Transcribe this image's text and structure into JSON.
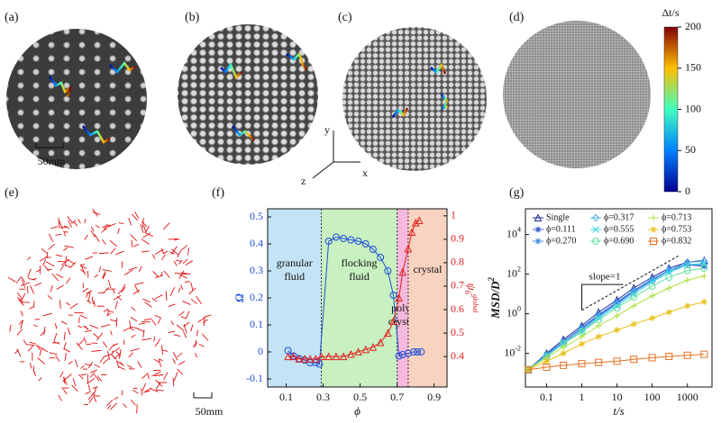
{
  "panel_labels": [
    "(a)",
    "(b)",
    "(c)",
    "(d)",
    "(e)",
    "(f)",
    "(g)"
  ],
  "scale_bars": [
    "50mm",
    "50mm"
  ],
  "axes_triad": {
    "x": "x",
    "y": "y",
    "z": "z"
  },
  "colorbar": {
    "title": "Δt/s",
    "lim": [
      0,
      200
    ],
    "ticks": [
      0,
      50,
      100,
      150,
      200
    ]
  },
  "chart_data": [
    {
      "type": "line",
      "xlabel": "ϕ",
      "ylabel": "Ω",
      "y2label": {
        "base": "ψ",
        "sub": "6",
        "sup": "global"
      },
      "xlim": [
        0,
        0.97
      ],
      "xticks": [
        0.1,
        0.3,
        0.5,
        0.7,
        0.9
      ],
      "ylim": [
        -0.13,
        0.53
      ],
      "yticks": [
        -0.1,
        0,
        0.1,
        0.2,
        0.3,
        0.4,
        0.5
      ],
      "y2lim": [
        0.27,
        1.03
      ],
      "y2ticks": [
        0.4,
        0.5,
        0.6,
        0.7,
        0.8,
        0.9,
        1
      ],
      "regions": [
        {
          "lines": [
            "granular",
            "fluid"
          ],
          "range": [
            0,
            0.29
          ],
          "color": "#c3e4f7"
        },
        {
          "lines": [
            "flocking",
            "fluid"
          ],
          "range": [
            0.29,
            0.7
          ],
          "color": "#c8f0c0"
        },
        {
          "lines": [
            "poly-",
            "crystal"
          ],
          "range": [
            0.7,
            0.76
          ],
          "color": "#f4b9dc"
        },
        {
          "lines": [
            "crystal"
          ],
          "range": [
            0.76,
            0.97
          ],
          "color": "#f8d3c0"
        }
      ],
      "series": [
        {
          "color": "#1f4fd8",
          "marker": "circle",
          "x": [
            0.11,
            0.14,
            0.17,
            0.2,
            0.23,
            0.26,
            0.28,
            0.33,
            0.37,
            0.41,
            0.45,
            0.49,
            0.53,
            0.57,
            0.61,
            0.65,
            0.68,
            0.71,
            0.73,
            0.76,
            0.79,
            0.81,
            0.83
          ],
          "values": [
            0.005,
            -0.015,
            -0.025,
            -0.03,
            -0.04,
            -0.04,
            -0.045,
            0.41,
            0.425,
            0.42,
            0.415,
            0.41,
            0.4,
            0.38,
            0.35,
            0.3,
            0.21,
            -0.015,
            -0.01,
            -0.005,
            0,
            0,
            0
          ]
        },
        {
          "color": "#e02020",
          "marker": "triangle",
          "axis": "y2",
          "x": [
            0.11,
            0.14,
            0.17,
            0.2,
            0.23,
            0.26,
            0.29,
            0.33,
            0.37,
            0.41,
            0.45,
            0.49,
            0.53,
            0.57,
            0.61,
            0.65,
            0.68,
            0.71,
            0.73,
            0.76,
            0.78,
            0.8,
            0.82
          ],
          "values": [
            0.4,
            0.4,
            0.39,
            0.39,
            0.39,
            0.39,
            0.4,
            0.4,
            0.4,
            0.4,
            0.41,
            0.42,
            0.43,
            0.44,
            0.46,
            0.5,
            0.55,
            0.65,
            0.76,
            0.86,
            0.93,
            0.97,
            0.98
          ]
        }
      ]
    },
    {
      "type": "line",
      "xscale": "log",
      "yscale": "log",
      "xlabel": "t/s",
      "ylabel": {
        "base": "MSD/D",
        "sup": "2"
      },
      "xlim": [
        0.025,
        5000
      ],
      "xticks": [
        0.1,
        1,
        10,
        100,
        1000
      ],
      "ylim": [
        0.0002,
        200000
      ],
      "yticks": [
        {
          "value": 0.01,
          "label": "10",
          "exponent": "-2"
        },
        {
          "value": 1,
          "label": "10",
          "exponent": "0"
        },
        {
          "value": 100,
          "label": "10",
          "exponent": "2"
        },
        {
          "value": 10000,
          "label": "10",
          "exponent": "4"
        }
      ],
      "legend": "top",
      "annotation": "slope=1",
      "x": [
        0.03,
        0.1,
        0.3,
        1,
        3,
        10,
        30,
        100,
        300,
        1000,
        3000
      ],
      "series": [
        {
          "name": "Single",
          "color": "#1a2a9a",
          "marker": "triangle",
          "values": [
            0.0015,
            0.01,
            0.05,
            0.25,
            1.2,
            5,
            20,
            70,
            200,
            400,
            500
          ]
        },
        {
          "name": "ϕ=0.111",
          "color": "#3050d0",
          "marker": "star",
          "values": [
            0.0015,
            0.008,
            0.04,
            0.18,
            0.8,
            3.5,
            14,
            50,
            150,
            300,
            250
          ]
        },
        {
          "name": "ϕ=0.270",
          "color": "#3a8ae0",
          "marker": "star",
          "values": [
            0.0015,
            0.009,
            0.04,
            0.2,
            0.9,
            4,
            15,
            55,
            160,
            300,
            300
          ]
        },
        {
          "name": "ϕ=0.317",
          "color": "#50b0f0",
          "marker": "diamond",
          "values": [
            0.0015,
            0.008,
            0.035,
            0.15,
            0.7,
            3,
            12,
            45,
            150,
            400,
            450
          ]
        },
        {
          "name": "ϕ=0.555",
          "color": "#40d8e8",
          "marker": "cross",
          "values": [
            0.0015,
            0.007,
            0.03,
            0.13,
            0.6,
            2.5,
            10,
            40,
            120,
            300,
            350
          ]
        },
        {
          "name": "ϕ=0.690",
          "color": "#60e0a0",
          "marker": "circle",
          "values": [
            0.0015,
            0.007,
            0.03,
            0.12,
            0.5,
            2,
            7,
            25,
            70,
            150,
            200
          ]
        },
        {
          "name": "ϕ=0.713",
          "color": "#b0e040",
          "marker": "plus",
          "values": [
            0.0015,
            0.006,
            0.02,
            0.07,
            0.25,
            0.8,
            2.5,
            8,
            20,
            50,
            80
          ]
        },
        {
          "name": "ϕ=0.753",
          "color": "#e8c020",
          "marker": "star",
          "values": [
            0.0015,
            0.004,
            0.01,
            0.03,
            0.07,
            0.15,
            0.3,
            0.6,
            1.2,
            2.5,
            4
          ]
        },
        {
          "name": "ϕ=0.832",
          "color": "#e87020",
          "marker": "square",
          "values": [
            0.0015,
            0.002,
            0.0025,
            0.003,
            0.0035,
            0.004,
            0.005,
            0.006,
            0.007,
            0.008,
            0.009
          ]
        }
      ]
    }
  ]
}
